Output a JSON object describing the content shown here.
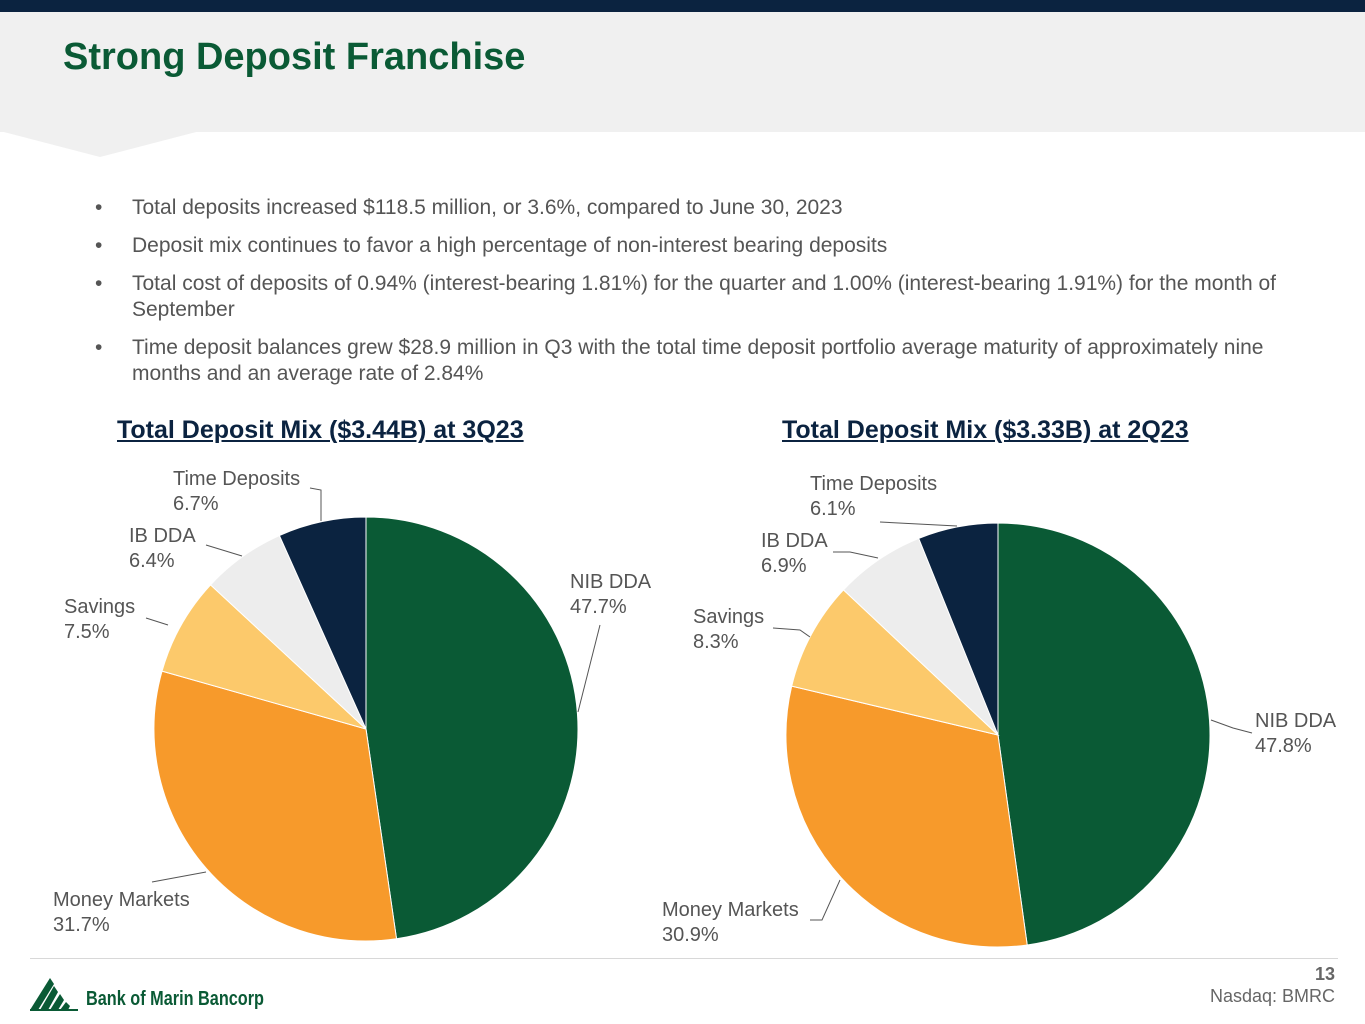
{
  "header": {
    "title": "Strong Deposit Franchise"
  },
  "bullets": [
    "Total deposits increased $118.5 million, or 3.6%, compared to June 30, 2023",
    "Deposit mix continues to favor a high percentage of non-interest bearing deposits",
    "Total cost of deposits of 0.94% (interest-bearing 1.81%) for the quarter and 1.00% (interest-bearing 1.91%) for the month of September",
    "Time deposit balances grew $28.9 million in Q3 with the total time deposit portfolio average maturity of approximately nine months and an average rate of 2.84%"
  ],
  "chart_data": [
    {
      "type": "pie",
      "title": "Total Deposit Mix ($3.44B) at 3Q23",
      "categories": [
        "NIB DDA",
        "Money Markets",
        "Savings",
        "IB DDA",
        "Time Deposits"
      ],
      "values": [
        47.7,
        31.7,
        7.5,
        6.4,
        6.7
      ],
      "value_labels": [
        "47.7%",
        "31.7%",
        "7.5%",
        "6.4%",
        "6.7%"
      ],
      "colors": [
        "#0a5a35",
        "#f79a2b",
        "#fcc96b",
        "#ededed",
        "#0b2340"
      ]
    },
    {
      "type": "pie",
      "title": "Total Deposit Mix ($3.33B) at 2Q23",
      "categories": [
        "NIB DDA",
        "Money Markets",
        "Savings",
        "IB DDA",
        "Time Deposits"
      ],
      "values": [
        47.8,
        30.9,
        8.3,
        6.9,
        6.1
      ],
      "value_labels": [
        "47.8%",
        "30.9%",
        "8.3%",
        "6.9%",
        "6.1%"
      ],
      "colors": [
        "#0a5a35",
        "#f79a2b",
        "#fcc96b",
        "#ededed",
        "#0b2340"
      ]
    }
  ],
  "footer": {
    "company": "Bank of Marin Bancorp",
    "page_number": "13",
    "ticker": "Nasdaq: BMRC"
  }
}
